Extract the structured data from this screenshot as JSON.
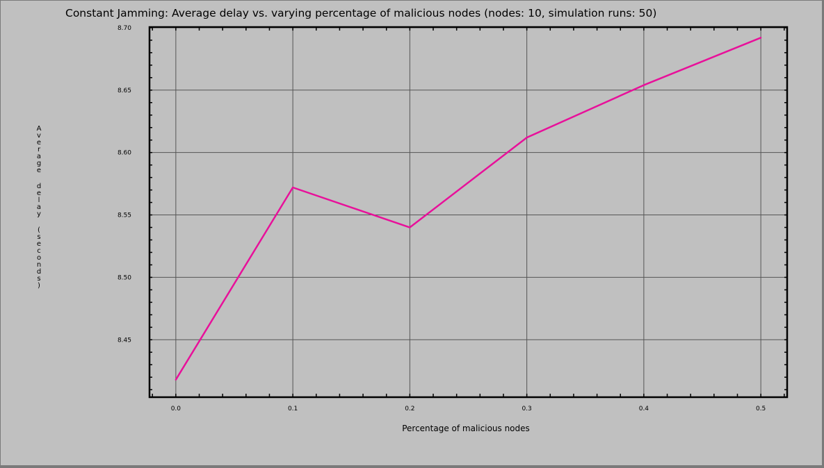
{
  "chart_data": {
    "type": "line",
    "title": "Constant Jamming: Average delay vs. varying percentage of malicious nodes (nodes: 10, simulation runs: 50)",
    "xlabel": "Percentage of malicious nodes",
    "ylabel": "Average delay (seconds)",
    "x": [
      0.0,
      0.1,
      0.2,
      0.3,
      0.4,
      0.5
    ],
    "xticks": [
      "0.0",
      "0.1",
      "0.2",
      "0.3",
      "0.4",
      "0.5"
    ],
    "yticks": [
      "8.45",
      "8.50",
      "8.55",
      "8.60",
      "8.65",
      "8.70"
    ],
    "xlim": [
      -0.0225,
      0.5225
    ],
    "ylim": [
      8.404,
      8.7005
    ],
    "series": [
      {
        "values": [
          8.418,
          8.572,
          8.54,
          8.612,
          8.654,
          8.692
        ],
        "color": "#e8109a"
      }
    ],
    "grid": true
  }
}
